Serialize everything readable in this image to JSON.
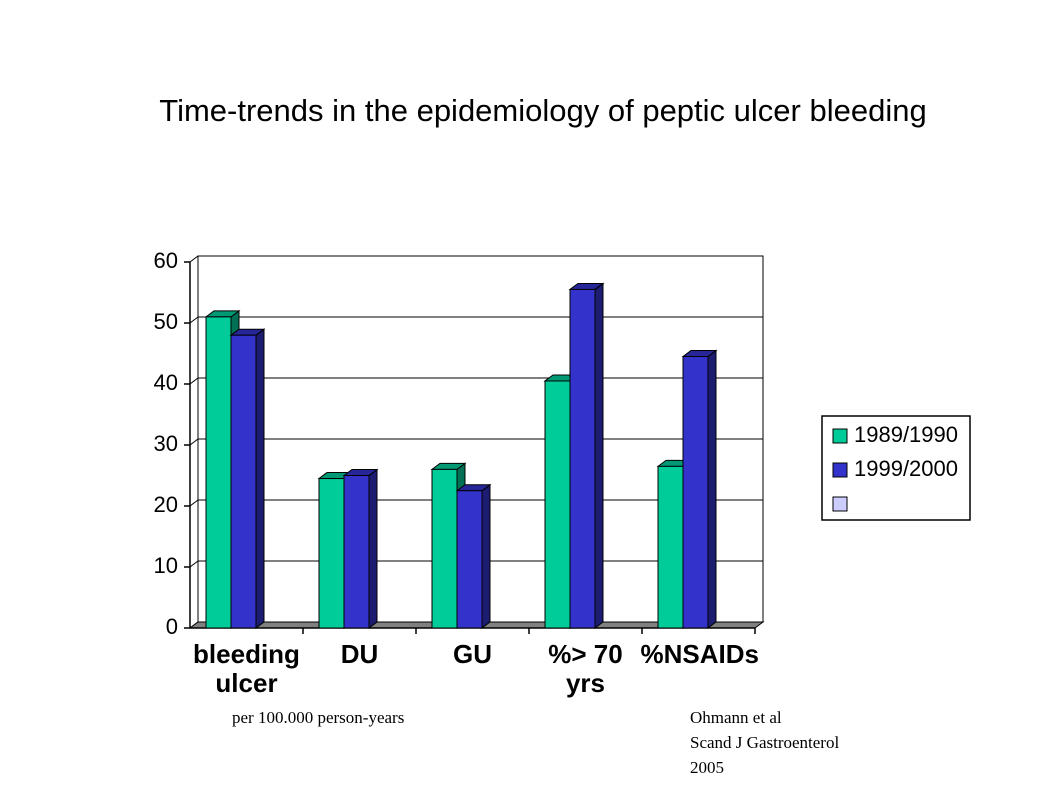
{
  "chart_data": {
    "type": "bar",
    "title": "Time-trends in the epidemiology of peptic ulcer bleeding",
    "categories": [
      "bleeding ulcer",
      "DU",
      "GU",
      "%> 70 yrs",
      "%NSAIDs"
    ],
    "series": [
      {
        "name": "1989/1990",
        "color": "#00cc99",
        "values": [
          51,
          24.5,
          26,
          40.5,
          26.5
        ]
      },
      {
        "name": "1999/2000",
        "color": "#3333cc",
        "values": [
          48,
          25,
          22.5,
          55.5,
          44.5
        ]
      }
    ],
    "ylim": [
      0,
      60
    ],
    "yticks": [
      0,
      10,
      20,
      30,
      40,
      50,
      60
    ],
    "grid": true,
    "legend": "right",
    "notes": [
      "per 100.000 person-years",
      "Ohmann et al",
      "Scand J Gastroenterol",
      "2005"
    ]
  }
}
